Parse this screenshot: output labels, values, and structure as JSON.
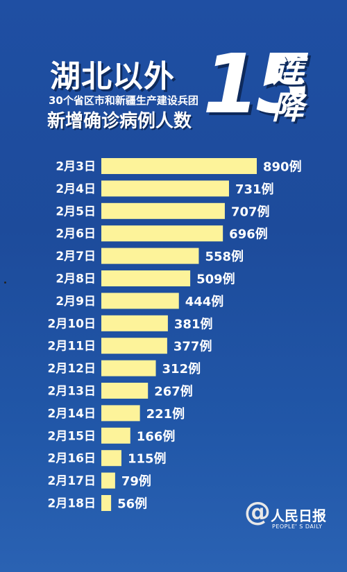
{
  "header": {
    "title": "湖北以外",
    "subtitle": "30个省区市和新疆生产建设兵团",
    "title2": "新增确诊病例人数",
    "big_number": "15",
    "side_char_1": "连",
    "side_char_2": "降"
  },
  "logo": {
    "symbol": "@",
    "name_cn": "人民日报",
    "name_en": "PEOPLE' S DAILY"
  },
  "colors": {
    "bar": "#fdf39a",
    "background": "#1f4fa3",
    "text": "#ffffff"
  },
  "chart_data": {
    "type": "bar",
    "orientation": "horizontal",
    "categories": [
      "2月3日",
      "2月4日",
      "2月5日",
      "2月6日",
      "2月7日",
      "2月8日",
      "2月9日",
      "2月10日",
      "2月11日",
      "2月12日",
      "2月13日",
      "2月14日",
      "2月15日",
      "2月16日",
      "2月17日",
      "2月18日"
    ],
    "values": [
      890,
      731,
      707,
      696,
      558,
      509,
      444,
      381,
      377,
      312,
      267,
      221,
      166,
      115,
      79,
      56
    ],
    "value_labels": [
      "890例",
      "731例",
      "707例",
      "696例",
      "558例",
      "509例",
      "444例",
      "381例",
      "377例",
      "312例",
      "267例",
      "221例",
      "166例",
      "115例",
      "79例",
      "56例"
    ],
    "title": "",
    "xlabel": "",
    "ylabel": "",
    "grid": false
  }
}
